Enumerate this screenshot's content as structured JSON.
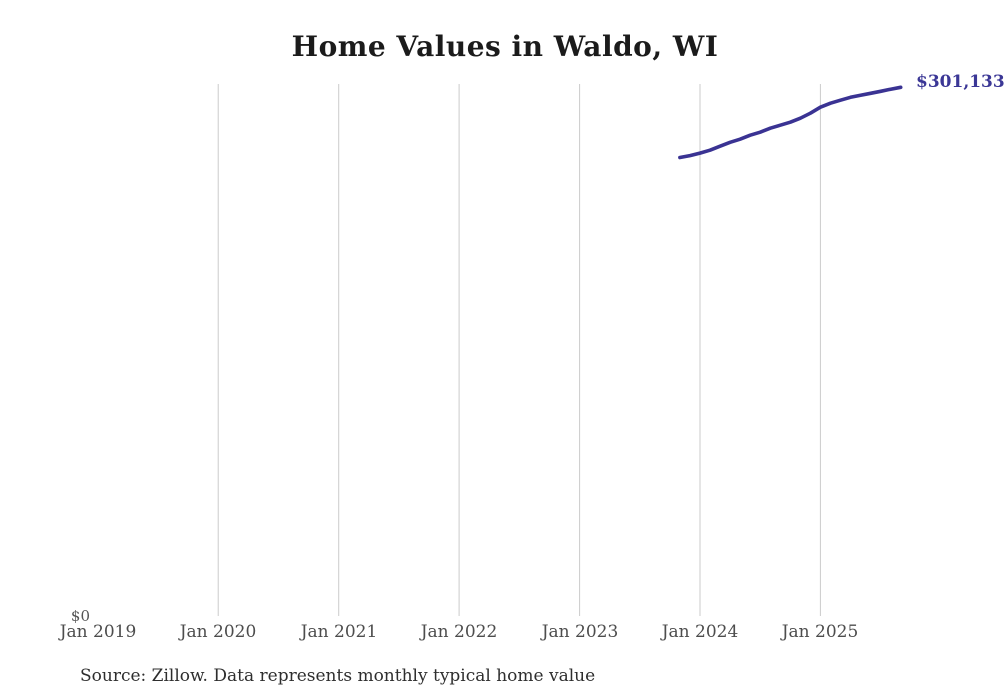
{
  "title": "Home Values in Waldo, WI",
  "source_note": "Source: Zillow. Data represents monthly typical home value",
  "y_axis": {
    "zero_label": "$0"
  },
  "end_label": "$301,133",
  "colors": {
    "line": "#3a3393",
    "end_label": "#3b3796",
    "gridline": "#cbcbcb",
    "title": "#1b1b1b",
    "axis_label": "#4d4d4d",
    "source": "#2e2e2e",
    "background": "#ffffff"
  },
  "chart_data": {
    "type": "line",
    "title": "Home Values in Waldo, WI",
    "xlabel": "",
    "ylabel": "",
    "x_tick_labels": [
      "Jan 2019",
      "Jan 2020",
      "Jan 2021",
      "Jan 2022",
      "Jan 2023",
      "Jan 2024",
      "Jan 2025"
    ],
    "gridline_years": [
      2020,
      2021,
      2022,
      2023,
      2024,
      2025
    ],
    "grid": "vertical-only",
    "legend_position": "none",
    "ylim": [
      0,
      303000
    ],
    "x_range": [
      "2019-01",
      "2025-10"
    ],
    "last_point_label": "$301,133",
    "series": [
      {
        "name": "Monthly typical home value",
        "x": [
          "2023-11",
          "2023-12",
          "2024-01",
          "2024-02",
          "2024-03",
          "2024-04",
          "2024-05",
          "2024-06",
          "2024-07",
          "2024-08",
          "2024-09",
          "2024-10",
          "2024-11",
          "2024-12",
          "2025-01",
          "2025-02",
          "2025-03",
          "2025-04",
          "2025-05",
          "2025-06",
          "2025-07",
          "2025-08",
          "2025-09"
        ],
        "values": [
          260900,
          262000,
          263400,
          265100,
          267400,
          269600,
          271400,
          273700,
          275400,
          277700,
          279400,
          281100,
          283400,
          286300,
          289700,
          292000,
          293700,
          295400,
          296600,
          297700,
          298800,
          300000,
          301133
        ]
      }
    ]
  }
}
